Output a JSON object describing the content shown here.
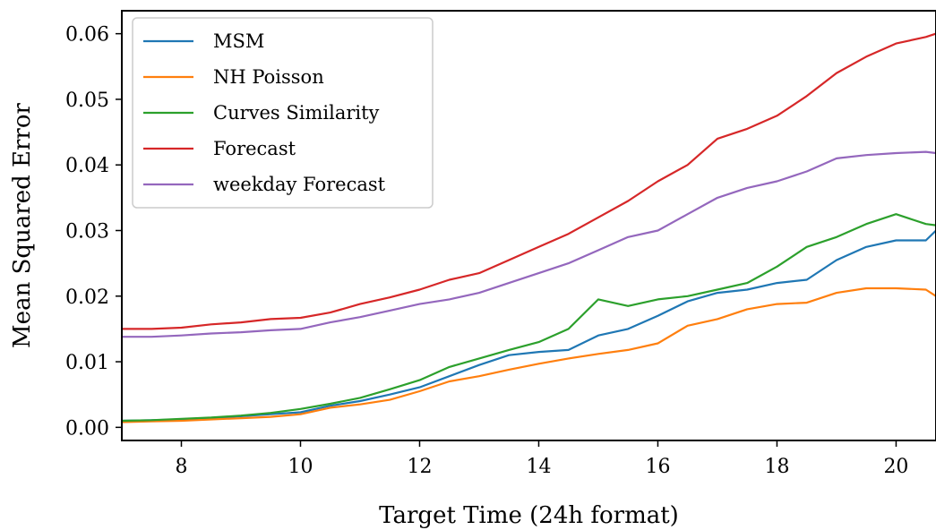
{
  "chart_data": {
    "type": "line",
    "title": "",
    "xlabel": "Target Time (24h format)",
    "ylabel": "Mean Squared Error",
    "xlim": [
      7.0,
      20.67
    ],
    "ylim": [
      -0.002,
      0.0635
    ],
    "xticks": [
      8,
      10,
      12,
      14,
      16,
      18,
      20
    ],
    "xtick_labels": [
      "8",
      "10",
      "12",
      "14",
      "16",
      "18",
      "20"
    ],
    "yticks": [
      0.0,
      0.01,
      0.02,
      0.03,
      0.04,
      0.05,
      0.06
    ],
    "ytick_labels": [
      "0.00",
      "0.01",
      "0.02",
      "0.03",
      "0.04",
      "0.05",
      "0.06"
    ],
    "grid": false,
    "legend_position": "top-left",
    "x": [
      7.0,
      7.5,
      8.0,
      8.5,
      9.0,
      9.5,
      10.0,
      10.5,
      11.0,
      11.5,
      12.0,
      12.5,
      13.0,
      13.5,
      14.0,
      14.5,
      15.0,
      15.5,
      16.0,
      16.5,
      17.0,
      17.5,
      18.0,
      18.5,
      19.0,
      19.5,
      20.0,
      20.5,
      20.67
    ],
    "series": [
      {
        "name": "MSM",
        "color": "#1f77b4",
        "values": [
          0.001,
          0.0011,
          0.0012,
          0.0014,
          0.0017,
          0.002,
          0.0023,
          0.0033,
          0.004,
          0.005,
          0.0061,
          0.0078,
          0.0095,
          0.011,
          0.0115,
          0.0118,
          0.014,
          0.015,
          0.017,
          0.0192,
          0.0205,
          0.021,
          0.022,
          0.0225,
          0.0255,
          0.0275,
          0.0285,
          0.0285,
          0.03
        ]
      },
      {
        "name": "NH Poisson",
        "color": "#ff7f0e",
        "values": [
          0.0008,
          0.0009,
          0.001,
          0.0012,
          0.0014,
          0.0016,
          0.002,
          0.003,
          0.0035,
          0.0042,
          0.0055,
          0.007,
          0.0078,
          0.0088,
          0.0097,
          0.0105,
          0.0112,
          0.0118,
          0.0128,
          0.0155,
          0.0165,
          0.018,
          0.0188,
          0.019,
          0.0205,
          0.0212,
          0.0212,
          0.021,
          0.02
        ]
      },
      {
        "name": "Curves Similarity",
        "color": "#2ca02c",
        "values": [
          0.001,
          0.0011,
          0.0013,
          0.0015,
          0.0018,
          0.0022,
          0.0028,
          0.0036,
          0.0045,
          0.0058,
          0.0072,
          0.0092,
          0.0105,
          0.0118,
          0.013,
          0.015,
          0.0195,
          0.0185,
          0.0195,
          0.02,
          0.021,
          0.022,
          0.0245,
          0.0275,
          0.029,
          0.031,
          0.0325,
          0.031,
          0.0308
        ]
      },
      {
        "name": "Forecast",
        "color": "#d62728",
        "values": [
          0.015,
          0.015,
          0.0152,
          0.0157,
          0.016,
          0.0165,
          0.0167,
          0.0175,
          0.0188,
          0.0198,
          0.021,
          0.0225,
          0.0235,
          0.0255,
          0.0275,
          0.0295,
          0.032,
          0.0345,
          0.0375,
          0.04,
          0.044,
          0.0455,
          0.0475,
          0.0505,
          0.054,
          0.0565,
          0.0585,
          0.0595,
          0.06
        ]
      },
      {
        "name": "weekday Forecast",
        "color": "#9467bd",
        "values": [
          0.0138,
          0.0138,
          0.014,
          0.0143,
          0.0145,
          0.0148,
          0.015,
          0.016,
          0.0168,
          0.0178,
          0.0188,
          0.0195,
          0.0205,
          0.022,
          0.0235,
          0.025,
          0.027,
          0.029,
          0.03,
          0.0325,
          0.035,
          0.0365,
          0.0375,
          0.039,
          0.041,
          0.0415,
          0.0418,
          0.042,
          0.0418
        ]
      }
    ]
  }
}
